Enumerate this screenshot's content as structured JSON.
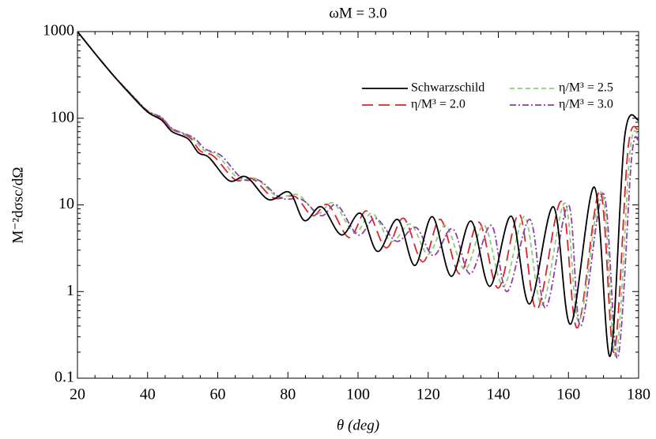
{
  "chart_data": {
    "type": "line",
    "title": "ωM = 3.0",
    "x_label": "θ (deg)",
    "y_label": "M⁻²dσsc/dΩ",
    "yscale": "log",
    "xlim": [
      20,
      180
    ],
    "ylim": [
      0.1,
      1000
    ],
    "xticks": [
      20,
      40,
      60,
      80,
      100,
      120,
      140,
      160,
      180
    ],
    "yticks": [
      0.1,
      1,
      10,
      100,
      1000
    ],
    "series": [
      {
        "name": "Schwarzschild",
        "color": "#000000",
        "dash": "none",
        "x": [
          20,
          25,
          30,
          35,
          40,
          44,
          47,
          51.5,
          54.5,
          57.6,
          63.3,
          68.2,
          74.5,
          80.4,
          84.7,
          89.6,
          95.3,
          100.7,
          105.6,
          111.3,
          116.2,
          121.2,
          126.6,
          132.2,
          137.6,
          143.7,
          148.9,
          155.7,
          160.6,
          167.4,
          171.9,
          176,
          180
        ],
        "values": [
          1000,
          560,
          320,
          190,
          118,
          95,
          70,
          58,
          40,
          35,
          19,
          21,
          11.5,
          14,
          6.6,
          9.5,
          4.5,
          8,
          2.9,
          6.8,
          2.0,
          7.3,
          1.5,
          6.5,
          1.15,
          7.4,
          0.72,
          9.5,
          0.42,
          16,
          0.18,
          60,
          96
        ]
      },
      {
        "name": "η/M³ = 2.0",
        "color": "#d9262b",
        "dash": "14,7",
        "x": [
          20,
          25,
          30,
          35,
          40,
          44,
          47,
          52,
          55,
          59,
          65,
          70,
          76,
          82,
          87,
          91.5,
          97.5,
          102.5,
          108,
          113,
          118.5,
          123.5,
          129,
          134.5,
          140,
          146,
          151,
          158,
          162.5,
          169,
          173,
          177,
          180
        ],
        "values": [
          1000,
          560,
          320,
          195,
          120,
          100,
          75,
          60,
          42,
          36,
          19.5,
          20,
          12,
          12.5,
          7.5,
          10,
          4.2,
          8.5,
          3.2,
          7,
          2.2,
          6.8,
          1.6,
          6.3,
          1.1,
          7.8,
          0.62,
          11,
          0.38,
          14.5,
          0.2,
          45,
          73
        ]
      },
      {
        "name": "η/M³ = 2.5",
        "color": "#8ccb7c",
        "dash": "6,4",
        "x": [
          20,
          25,
          30,
          35,
          40,
          44,
          47,
          52.5,
          56,
          60,
          66,
          71,
          77,
          83,
          88.5,
          93,
          99,
          104,
          109.5,
          115,
          120,
          125,
          130.5,
          136,
          141.5,
          147.5,
          152.5,
          159,
          163,
          169.5,
          173.5,
          177.5,
          180
        ],
        "values": [
          1000,
          560,
          320,
          195,
          122,
          102,
          76,
          60,
          43,
          37,
          20,
          20,
          12.5,
          13,
          8,
          10.5,
          4.8,
          8,
          3.8,
          6,
          2.7,
          5.8,
          1.8,
          5.8,
          1.15,
          7.3,
          0.7,
          10.5,
          0.45,
          14,
          0.18,
          40,
          65
        ]
      },
      {
        "name": "η/M³ = 3.0",
        "color": "#8e3fa8",
        "dash": "8,3,2,3",
        "x": [
          20,
          25,
          30,
          35,
          40,
          44,
          47,
          53,
          56.5,
          61,
          67,
          72,
          78,
          84,
          89.5,
          94,
          100,
          105,
          111,
          116.5,
          121.5,
          127,
          132,
          138,
          142.5,
          149,
          153.5,
          160,
          163.5,
          170,
          174,
          178,
          180
        ],
        "values": [
          1000,
          560,
          320,
          195,
          122,
          102,
          76,
          60,
          44,
          37,
          20,
          19,
          12,
          11.5,
          7.5,
          10,
          4.5,
          7,
          3.8,
          5.5,
          2.6,
          5.3,
          1.6,
          5.8,
          1.0,
          6.8,
          0.65,
          10,
          0.4,
          13.5,
          0.17,
          35,
          55
        ]
      }
    ]
  }
}
